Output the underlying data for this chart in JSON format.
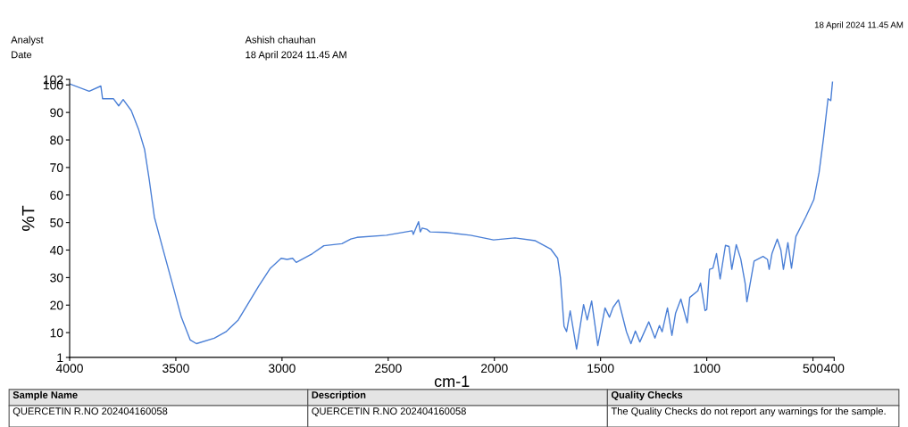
{
  "chart_data": {
    "type": "line",
    "xlabel": "cm-1",
    "ylabel": "%T",
    "xlim": [
      4000,
      400
    ],
    "xticks": [
      4000,
      3500,
      3000,
      2500,
      2000,
      1500,
      1000,
      500,
      400
    ],
    "ylim": [
      1,
      102
    ],
    "yticks": [
      1,
      10,
      20,
      30,
      40,
      50,
      60,
      70,
      80,
      90,
      100,
      102
    ],
    "grid": false,
    "legend": false,
    "marker": "none",
    "line_style": "solid",
    "series": [
      {
        "color": "#4a7fd6",
        "x": [
          4000,
          3908,
          3853,
          3845,
          3794,
          3769,
          3748,
          3710,
          3676,
          3647,
          3626,
          3601,
          3563,
          3517,
          3474,
          3432,
          3403,
          3319,
          3264,
          3206,
          3109,
          3055,
          3004,
          2976,
          2950,
          2933,
          2857,
          2803,
          2718,
          2676,
          2647,
          2508,
          2387,
          2382,
          2357,
          2349,
          2340,
          2319,
          2303,
          2227,
          2113,
          2004,
          1903,
          1807,
          1735,
          1702,
          1689,
          1672,
          1660,
          1643,
          1613,
          1580,
          1563,
          1542,
          1513,
          1479,
          1458,
          1441,
          1416,
          1378,
          1357,
          1336,
          1315,
          1273,
          1244,
          1223,
          1210,
          1185,
          1164,
          1147,
          1122,
          1092,
          1080,
          1042,
          1029,
          1008,
          1000,
          987,
          971,
          954,
          937,
          912,
          895,
          882,
          861,
          840,
          819,
          811,
          798,
          777,
          735,
          714,
          706,
          693,
          668,
          651,
          639,
          618,
          601,
          580,
          534,
          496,
          471,
          450,
          429,
          416,
          408
        ],
        "values": [
          100.4,
          97.7,
          99.6,
          95,
          95,
          92.4,
          94.7,
          90.7,
          84,
          76.5,
          66,
          52,
          41,
          28,
          15.6,
          7.3,
          6,
          8,
          10.3,
          14.6,
          27,
          33.4,
          37,
          36.6,
          37,
          35.5,
          38.7,
          41.6,
          42.3,
          44,
          44.6,
          45.4,
          47,
          45.7,
          50.3,
          46.6,
          48,
          47.6,
          46.6,
          46.4,
          45.4,
          43.7,
          44.4,
          43.4,
          40.4,
          37,
          30,
          12.3,
          10.4,
          17.9,
          4,
          20.2,
          14.6,
          21.5,
          5.3,
          19,
          15.6,
          19.2,
          21.9,
          10.3,
          6,
          10.6,
          6.6,
          13.9,
          8,
          12.6,
          10.3,
          19,
          9,
          17,
          22.2,
          13.6,
          22.8,
          25.2,
          28,
          18,
          18.4,
          33,
          33.4,
          38.7,
          29.5,
          41.7,
          41.3,
          33,
          42,
          36.8,
          27.8,
          21.2,
          26.8,
          36,
          37.7,
          36.6,
          33,
          38.7,
          44,
          40,
          33,
          42.7,
          33.4,
          45,
          52,
          58.3,
          68.2,
          80.8,
          95,
          94.3,
          101
        ]
      }
    ],
    "annotations": [
      "Analyst",
      "Ashish chauhan",
      "Date",
      "18 April 2024 11.45 AM",
      "18 April 2024 11.45 AM",
      "Sample Name",
      "Description",
      "Quality Checks",
      "QUERCETIN R.NO 202404160058",
      "QUERCETIN R.NO 202404160058",
      "The Quality Checks do not report any warnings for the sample."
    ]
  }
}
